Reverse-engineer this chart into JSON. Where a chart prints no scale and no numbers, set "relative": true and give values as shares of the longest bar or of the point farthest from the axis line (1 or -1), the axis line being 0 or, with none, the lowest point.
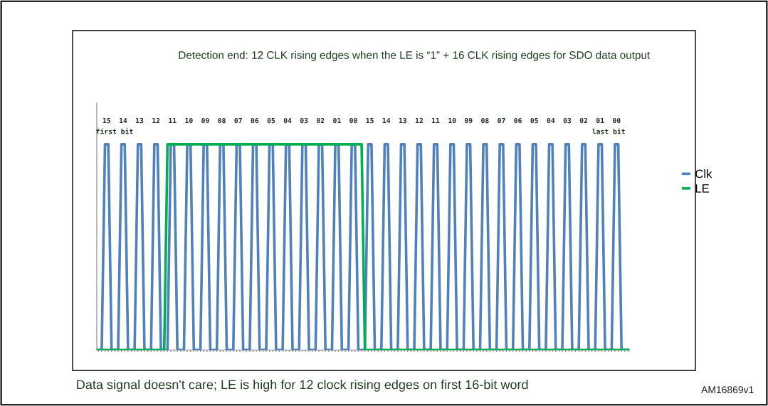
{
  "chart_data": {
    "type": "line",
    "relative": true,
    "title": "Detection end: 12 CLK rising edges when the LE is “1” + 16 CLK rising edges for SDO data output",
    "categories": [
      null,
      null,
      null,
      null,
      null,
      null,
      null,
      null,
      null,
      null,
      null,
      null,
      null,
      null,
      null,
      null,
      null,
      null,
      null,
      null,
      null,
      null,
      null,
      null,
      null,
      null,
      null,
      null,
      null,
      null,
      null,
      null,
      null,
      null,
      null,
      null,
      null,
      null,
      null,
      null,
      null,
      null,
      null,
      null,
      null,
      null,
      null,
      null,
      null,
      null,
      null,
      null,
      null,
      null,
      null,
      null,
      null,
      null,
      null,
      null,
      null,
      null,
      null,
      null,
      null,
      null,
      null,
      null,
      null,
      null,
      null,
      null,
      null,
      null,
      null,
      null,
      null,
      null,
      null,
      null,
      null,
      null,
      null,
      null,
      null,
      null,
      null,
      null,
      null,
      null,
      null,
      null,
      null,
      null,
      null,
      null,
      null,
      null,
      null,
      null,
      null,
      null,
      null,
      null,
      null,
      null,
      null,
      null,
      null,
      null,
      null,
      null,
      null,
      null,
      null,
      null,
      null,
      null,
      null,
      null,
      null,
      null,
      null,
      null,
      null,
      null,
      null,
      null,
      null,
      null,
      null,
      null,
      null,
      null,
      null,
      null,
      null,
      null,
      null,
      null,
      null,
      null,
      null,
      null,
      null,
      null,
      null,
      null,
      null,
      null,
      null,
      null,
      null,
      null,
      null,
      null,
      null,
      null,
      null,
      null,
      null,
      null
    ],
    "series": [
      {
        "name": "Clk",
        "color": "#4f81bd",
        "values": [
          0,
          0,
          1,
          1,
          0,
          0,
          0,
          1,
          1,
          0,
          0,
          0,
          1,
          1,
          0,
          0,
          0,
          1,
          1,
          0,
          0,
          0,
          1,
          1,
          0,
          0,
          0,
          1,
          1,
          0,
          0,
          0,
          1,
          1,
          0,
          0,
          0,
          1,
          1,
          0,
          0,
          0,
          1,
          1,
          0,
          0,
          0,
          1,
          1,
          0,
          0,
          0,
          1,
          1,
          0,
          0,
          0,
          1,
          1,
          0,
          0,
          0,
          1,
          1,
          0,
          0,
          0,
          1,
          1,
          0,
          0,
          0,
          1,
          1,
          0,
          0,
          0,
          1,
          1,
          0,
          0,
          0,
          1,
          1,
          0,
          0,
          0,
          1,
          1,
          0,
          0,
          0,
          1,
          1,
          0,
          0,
          0,
          1,
          1,
          0,
          0,
          0,
          1,
          1,
          0,
          0,
          0,
          1,
          1,
          0,
          0,
          0,
          1,
          1,
          0,
          0,
          0,
          1,
          1,
          0,
          0,
          0,
          1,
          1,
          0,
          0,
          0,
          1,
          1,
          0,
          0,
          0,
          1,
          1,
          0,
          0,
          0,
          1,
          1,
          0,
          0,
          0,
          1,
          1,
          0,
          0,
          0,
          1,
          1,
          0,
          0,
          0,
          1,
          1,
          0,
          0,
          0,
          1,
          1,
          0,
          0,
          0
        ]
      },
      {
        "name": "LE",
        "color": "#00b050",
        "values": [
          0,
          0,
          0,
          0,
          0,
          0,
          0,
          0,
          0,
          0,
          0,
          0,
          0,
          0,
          0,
          0,
          0,
          0,
          0,
          0,
          0,
          1,
          1,
          1,
          1,
          1,
          1,
          1,
          1,
          1,
          1,
          1,
          1,
          1,
          1,
          1,
          1,
          1,
          1,
          1,
          1,
          1,
          1,
          1,
          1,
          1,
          1,
          1,
          1,
          1,
          1,
          1,
          1,
          1,
          1,
          1,
          1,
          1,
          1,
          1,
          1,
          1,
          1,
          1,
          1,
          1,
          1,
          1,
          1,
          1,
          1,
          1,
          1,
          1,
          1,
          1,
          1,
          1,
          1,
          1,
          1,
          0,
          0,
          0,
          0,
          0,
          0,
          0,
          0,
          0,
          0,
          0,
          0,
          0,
          0,
          0,
          0,
          0,
          0,
          0,
          0,
          0,
          0,
          0,
          0,
          0,
          0,
          0,
          0,
          0,
          0,
          0,
          0,
          0,
          0,
          0,
          0,
          0,
          0,
          0,
          0,
          0,
          0,
          0,
          0,
          0,
          0,
          0,
          0,
          0,
          0,
          0,
          0,
          0,
          0,
          0,
          0,
          0,
          0,
          0,
          0,
          0,
          0,
          0,
          0,
          0,
          0,
          0,
          0,
          0,
          0,
          0,
          0,
          0,
          0,
          0,
          0,
          0,
          0,
          0,
          0,
          0
        ]
      }
    ],
    "annotations": [
      "15",
      "14",
      "13",
      "12",
      "11",
      "10",
      "09",
      "08",
      "07",
      "06",
      "05",
      "04",
      "03",
      "02",
      "01",
      "00",
      "15",
      "14",
      "13",
      "12",
      "11",
      "10",
      "09",
      "08",
      "07",
      "06",
      "05",
      "04",
      "03",
      "02",
      "01",
      "00",
      "first bit",
      "last bit",
      "Data signal doesn't care; LE is high for 12 clock rising edges on first 16-bit word",
      "AM16869v1"
    ],
    "legend": "right",
    "marker": "none",
    "line_style": "solid",
    "grid": false
  }
}
